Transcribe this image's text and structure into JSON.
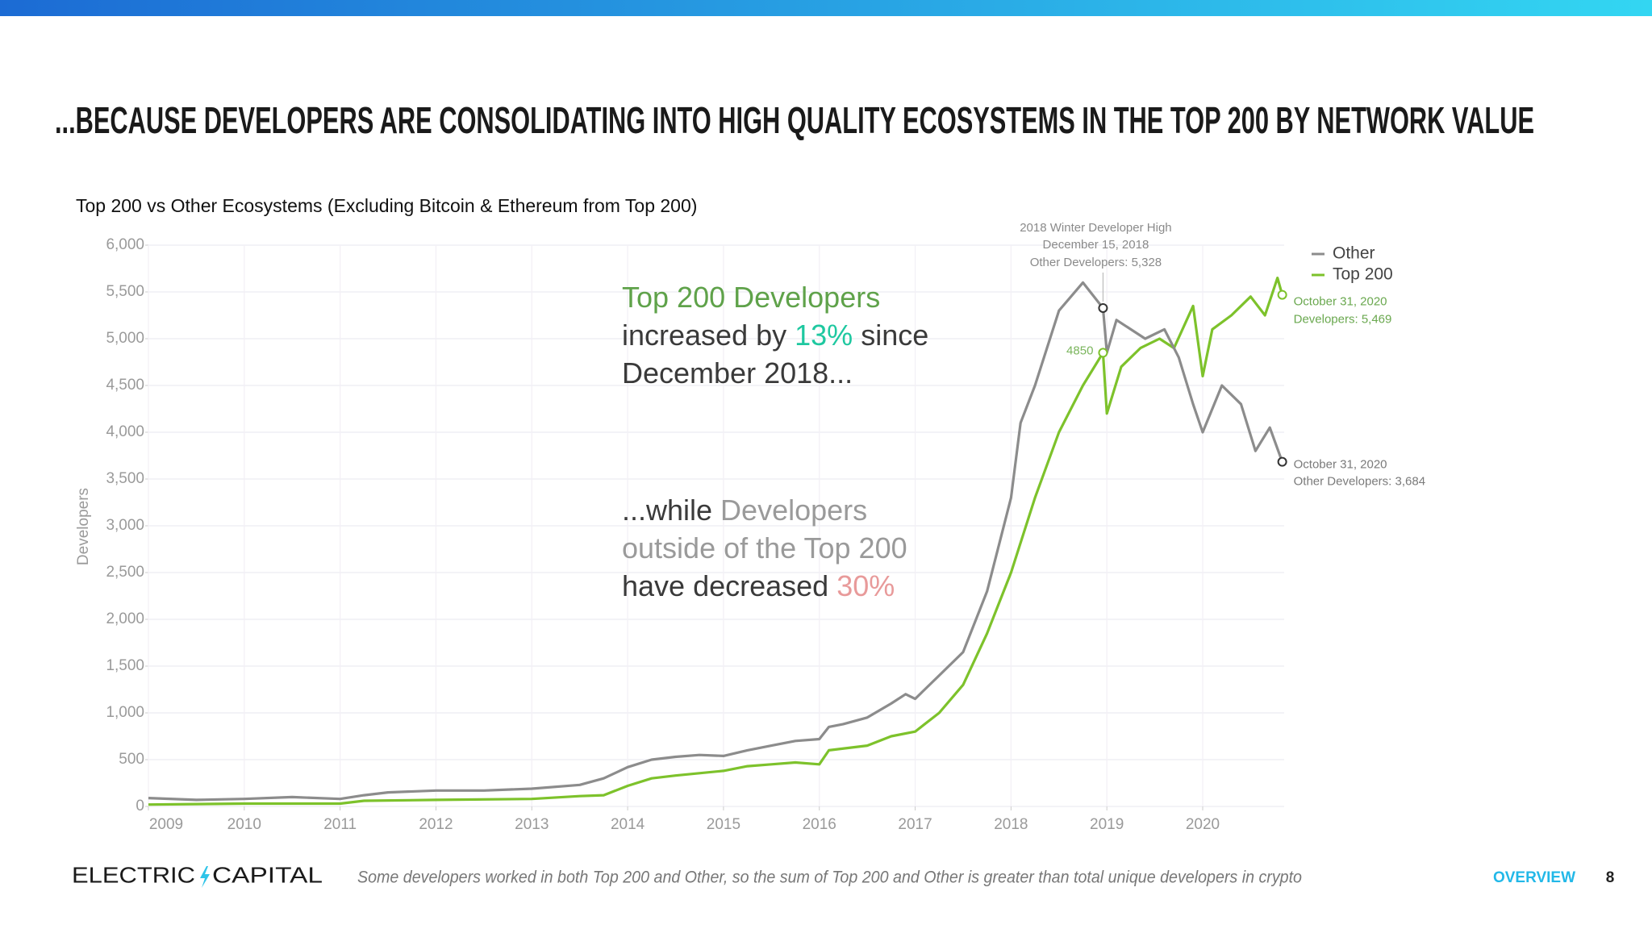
{
  "slide": {
    "title": "...BECAUSE DEVELOPERS ARE CONSOLIDATING INTO HIGH QUALITY ECOSYSTEMS IN THE TOP 200 BY NETWORK VALUE"
  },
  "chart_data": {
    "type": "line",
    "title": "Top 200 vs Other Ecosystems (Excluding Bitcoin & Ethereum from Top 200)",
    "y_label": "Developers",
    "xlim": [
      2009,
      2020.85
    ],
    "xticks": [
      2009,
      2010,
      2011,
      2012,
      2013,
      2014,
      2015,
      2016,
      2017,
      2018,
      2019,
      2020
    ],
    "ylim": [
      0,
      6000
    ],
    "yticks": [
      0,
      500,
      {
        "value": 1000,
        "label": "1,000"
      },
      {
        "value": 1500,
        "label": "1,500"
      },
      {
        "value": 2000,
        "label": "2,000"
      },
      {
        "value": 2500,
        "label": "2,500"
      },
      {
        "value": 3000,
        "label": "3,000"
      },
      {
        "value": 3500,
        "label": "3,500"
      },
      {
        "value": 4000,
        "label": "4,000"
      },
      {
        "value": 4500,
        "label": "4,500"
      },
      {
        "value": 5000,
        "label": "5,000"
      },
      {
        "value": 5500,
        "label": "5,500"
      },
      {
        "value": 6000,
        "label": "6,000"
      }
    ],
    "grid": true,
    "legend": "top-right",
    "series": [
      {
        "name": "Other",
        "color": "#8c8c8c",
        "x": [
          2009,
          2009.5,
          2010,
          2010.5,
          2011,
          2011.25,
          2011.5,
          2012,
          2012.5,
          2013,
          2013.5,
          2013.75,
          2014,
          2014.25,
          2014.5,
          2014.75,
          2015,
          2015.25,
          2015.5,
          2015.75,
          2016,
          2016.1,
          2016.25,
          2016.5,
          2016.75,
          2016.9,
          2017,
          2017.25,
          2017.5,
          2017.75,
          2018,
          2018.1,
          2018.25,
          2018.5,
          2018.75,
          2018.96,
          2019,
          2019.1,
          2019.4,
          2019.6,
          2019.75,
          2019.9,
          2020,
          2020.2,
          2020.4,
          2020.55,
          2020.7,
          2020.83
        ],
        "values": [
          90,
          70,
          80,
          100,
          80,
          120,
          150,
          170,
          170,
          190,
          230,
          300,
          420,
          500,
          530,
          550,
          540,
          600,
          650,
          700,
          720,
          850,
          880,
          950,
          1100,
          1200,
          1150,
          1400,
          1650,
          2300,
          3300,
          4100,
          4500,
          5300,
          5600,
          5328,
          4850,
          5200,
          5000,
          5100,
          4800,
          4300,
          4000,
          4500,
          4300,
          3800,
          4050,
          3684
        ]
      },
      {
        "name": "Top 200",
        "color": "#7dc22b",
        "x": [
          2009,
          2010,
          2011,
          2011.25,
          2012,
          2013,
          2013.5,
          2013.75,
          2014,
          2014.25,
          2014.5,
          2015,
          2015.25,
          2015.5,
          2015.75,
          2016,
          2016.1,
          2016.5,
          2016.75,
          2017,
          2017.25,
          2017.5,
          2017.75,
          2018,
          2018.25,
          2018.5,
          2018.75,
          2018.96,
          2019,
          2019.15,
          2019.35,
          2019.55,
          2019.7,
          2019.9,
          2020,
          2020.1,
          2020.3,
          2020.5,
          2020.65,
          2020.78,
          2020.83
        ],
        "values": [
          20,
          30,
          30,
          60,
          70,
          80,
          110,
          120,
          220,
          300,
          330,
          380,
          430,
          450,
          470,
          450,
          600,
          650,
          750,
          800,
          1000,
          1300,
          1850,
          2500,
          3300,
          4000,
          4500,
          4850,
          4200,
          4700,
          4900,
          5000,
          4900,
          5350,
          4600,
          5100,
          5250,
          5450,
          5250,
          5650,
          5469
        ]
      }
    ],
    "point_labels": [
      {
        "series": "Other",
        "x": 2018.96,
        "value": 5328,
        "color": "#8a8a8a",
        "lines": [
          "2018 Winter Developer High",
          "December 15, 2018",
          "Other Developers: 5,328"
        ]
      },
      {
        "series": "Top 200",
        "x": 2018.96,
        "value": 4850,
        "color": "#7ab55c"
      },
      {
        "series": "Top 200",
        "x": 2020.83,
        "value": 5469,
        "color": "#6aa84f",
        "lines": [
          "October 31, 2020",
          "Developers: 5,469"
        ]
      },
      {
        "series": "Other",
        "x": 2020.83,
        "value": 3684,
        "color": "#7a7a7a",
        "lines": [
          "October 31, 2020",
          "Other Developers: 3,684"
        ]
      }
    ],
    "callouts": [
      {
        "lines": [
          [
            {
              "text": "Top 200 Developers",
              "color": "#5fa24a"
            }
          ],
          [
            {
              "text": "increased by ",
              "color": "#3a3a3a"
            },
            {
              "text": "13%",
              "color": "#1ec8a0"
            },
            {
              "text": " since",
              "color": "#3a3a3a"
            }
          ],
          [
            {
              "text": "December 2018...",
              "color": "#3a3a3a"
            }
          ]
        ]
      },
      {
        "lines": [
          [
            {
              "text": "...while ",
              "color": "#3a3a3a"
            },
            {
              "text": "Developers",
              "color": "#9a9a9a"
            }
          ],
          [
            {
              "text": "outside of the Top 200",
              "color": "#9a9a9a"
            }
          ],
          [
            {
              "text": "have decreased ",
              "color": "#3a3a3a"
            },
            {
              "text": "30%",
              "color": "#e89a9a"
            }
          ]
        ]
      }
    ]
  },
  "footer": {
    "logo": [
      "ELECTRIC",
      "CAPITAL"
    ],
    "note": "Some developers worked in both Top 200 and Other, so the sum of Top 200 and Other is greater than total unique developers in crypto",
    "section": "OVERVIEW",
    "page": 8
  }
}
